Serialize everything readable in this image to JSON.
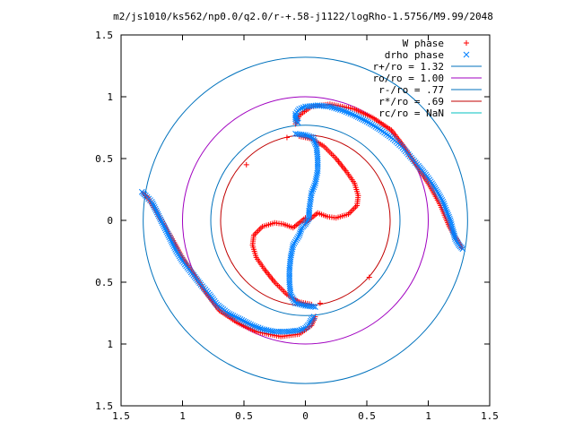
{
  "chart_data": {
    "type": "scatter",
    "title": "m2/js1010/ks562/np0.0/q2.0/r-+.58-j1122/logRho-1.5756/M9.99/2048",
    "xlabel": "",
    "ylabel": "",
    "xlim": [
      -1.5,
      1.5
    ],
    "ylim": [
      -1.5,
      1.5
    ],
    "x_tick_values": [
      -1.5,
      -1,
      -0.5,
      0,
      0.5,
      1,
      1.5
    ],
    "x_tick_labels": [
      "1.5",
      "1",
      "0.5",
      "0",
      "0.5",
      "1",
      "1.5"
    ],
    "y_tick_values": [
      1.5,
      1,
      0.5,
      0,
      -0.5,
      -1,
      -1.5
    ],
    "y_tick_labels": [
      "1.5",
      "1",
      "0.5",
      "0",
      "0.5",
      "1",
      "1.5"
    ],
    "grid": false,
    "legend_position": "top-right",
    "series": [
      {
        "name": "W phase",
        "kind": "points",
        "marker": "+",
        "color": "#ff0000",
        "groups": [
          [
            [
              -1.32,
              0.22
            ],
            [
              -1.28,
              0.18
            ],
            [
              -1.2,
              0.05
            ],
            [
              -1.1,
              -0.12
            ],
            [
              -1.0,
              -0.3
            ],
            [
              -0.9,
              -0.45
            ],
            [
              -0.8,
              -0.6
            ],
            [
              -0.7,
              -0.73
            ],
            [
              -0.55,
              -0.83
            ],
            [
              -0.4,
              -0.9
            ],
            [
              -0.2,
              -0.94
            ],
            [
              -0.05,
              -0.92
            ],
            [
              0.05,
              -0.85
            ],
            [
              0.08,
              -0.78
            ]
          ],
          [
            [
              1.27,
              -0.22
            ],
            [
              1.23,
              -0.15
            ],
            [
              1.17,
              -0.05
            ],
            [
              1.1,
              0.12
            ],
            [
              1.0,
              0.3
            ],
            [
              0.9,
              0.45
            ],
            [
              0.8,
              0.6
            ],
            [
              0.7,
              0.73
            ],
            [
              0.55,
              0.83
            ],
            [
              0.4,
              0.9
            ],
            [
              0.2,
              0.94
            ],
            [
              0.05,
              0.92
            ],
            [
              -0.05,
              0.85
            ],
            [
              -0.08,
              0.78
            ]
          ],
          [
            [
              -0.48,
              0.45
            ],
            [
              -0.15,
              0.67
            ],
            [
              0.12,
              -0.67
            ],
            [
              0.52,
              -0.46
            ]
          ],
          [
            [
              -0.05,
              0.68
            ],
            [
              0.05,
              0.66
            ],
            [
              0.15,
              0.6
            ],
            [
              0.25,
              0.5
            ],
            [
              0.33,
              0.4
            ],
            [
              0.4,
              0.3
            ],
            [
              0.43,
              0.2
            ],
            [
              0.42,
              0.12
            ],
            [
              0.35,
              0.05
            ],
            [
              0.25,
              0.02
            ],
            [
              0.18,
              0.03
            ],
            [
              0.1,
              0.06
            ],
            [
              0.05,
              0.02
            ],
            [
              0.0,
              -0.02
            ]
          ],
          [
            [
              0.05,
              -0.68
            ],
            [
              -0.05,
              -0.66
            ],
            [
              -0.15,
              -0.6
            ],
            [
              -0.25,
              -0.5
            ],
            [
              -0.33,
              -0.4
            ],
            [
              -0.4,
              -0.3
            ],
            [
              -0.43,
              -0.2
            ],
            [
              -0.42,
              -0.12
            ],
            [
              -0.35,
              -0.05
            ],
            [
              -0.25,
              -0.02
            ],
            [
              -0.18,
              -0.03
            ],
            [
              -0.1,
              -0.06
            ],
            [
              -0.05,
              -0.02
            ],
            [
              0.0,
              0.02
            ]
          ]
        ]
      },
      {
        "name": "drho phase",
        "kind": "points",
        "marker": "x",
        "color": "#0080ff",
        "groups": [
          [
            [
              -1.33,
              0.23
            ],
            [
              -1.3,
              0.2
            ],
            [
              -1.25,
              0.15
            ],
            [
              -1.2,
              0.05
            ],
            [
              -1.15,
              -0.05
            ],
            [
              -1.1,
              -0.15
            ],
            [
              -1.05,
              -0.25
            ],
            [
              -1.0,
              -0.33
            ],
            [
              -0.93,
              -0.42
            ],
            [
              -0.85,
              -0.52
            ],
            [
              -0.78,
              -0.6
            ],
            [
              -0.72,
              -0.68
            ],
            [
              -0.63,
              -0.75
            ],
            [
              -0.53,
              -0.8
            ],
            [
              -0.43,
              -0.85
            ],
            [
              -0.35,
              -0.88
            ],
            [
              -0.25,
              -0.9
            ],
            [
              -0.15,
              -0.9
            ],
            [
              -0.05,
              -0.89
            ],
            [
              0.0,
              -0.87
            ],
            [
              0.03,
              -0.84
            ],
            [
              0.05,
              -0.8
            ],
            [
              0.07,
              -0.78
            ]
          ],
          [
            [
              1.28,
              -0.23
            ],
            [
              1.25,
              -0.2
            ],
            [
              1.22,
              -0.15
            ],
            [
              1.2,
              -0.08
            ],
            [
              1.18,
              0.0
            ],
            [
              1.15,
              0.07
            ],
            [
              1.12,
              0.15
            ],
            [
              1.08,
              0.22
            ],
            [
              1.03,
              0.3
            ],
            [
              0.98,
              0.37
            ],
            [
              0.92,
              0.44
            ],
            [
              0.85,
              0.52
            ],
            [
              0.78,
              0.6
            ],
            [
              0.7,
              0.67
            ],
            [
              0.6,
              0.74
            ],
            [
              0.5,
              0.8
            ],
            [
              0.4,
              0.85
            ],
            [
              0.3,
              0.89
            ],
            [
              0.2,
              0.92
            ],
            [
              0.1,
              0.93
            ],
            [
              0.0,
              0.92
            ],
            [
              -0.05,
              0.9
            ],
            [
              -0.08,
              0.86
            ],
            [
              -0.08,
              0.82
            ],
            [
              -0.06,
              0.79
            ]
          ],
          [
            [
              -0.08,
              0.7
            ],
            [
              0.0,
              0.69
            ],
            [
              0.06,
              0.67
            ],
            [
              0.09,
              0.6
            ],
            [
              0.1,
              0.5
            ],
            [
              0.1,
              0.4
            ],
            [
              0.08,
              0.3
            ],
            [
              0.05,
              0.22
            ],
            [
              0.04,
              0.15
            ],
            [
              0.03,
              0.08
            ],
            [
              0.03,
              0.02
            ],
            [
              0.0,
              -0.03
            ],
            [
              -0.03,
              -0.06
            ],
            [
              -0.05,
              -0.12
            ],
            [
              -0.1,
              -0.2
            ],
            [
              -0.12,
              -0.3
            ],
            [
              -0.13,
              -0.4
            ],
            [
              -0.13,
              -0.5
            ],
            [
              -0.12,
              -0.6
            ],
            [
              -0.08,
              -0.67
            ],
            [
              0.0,
              -0.69
            ],
            [
              0.08,
              -0.7
            ]
          ]
        ]
      },
      {
        "name": "r+/ro = 1.32",
        "kind": "circle",
        "r": 1.32,
        "color": "#0072bd"
      },
      {
        "name": "ro/ro = 1.00",
        "kind": "circle",
        "r": 1.0,
        "color": "#a000c0"
      },
      {
        "name": "r-/ro = .77",
        "kind": "circle",
        "r": 0.77,
        "color": "#0072bd"
      },
      {
        "name": "r*/ro = .69",
        "kind": "circle",
        "r": 0.69,
        "color": "#c00000"
      },
      {
        "name": "rc/ro = NaN",
        "kind": "circle",
        "r": null,
        "color": "#00c0c0"
      }
    ]
  }
}
